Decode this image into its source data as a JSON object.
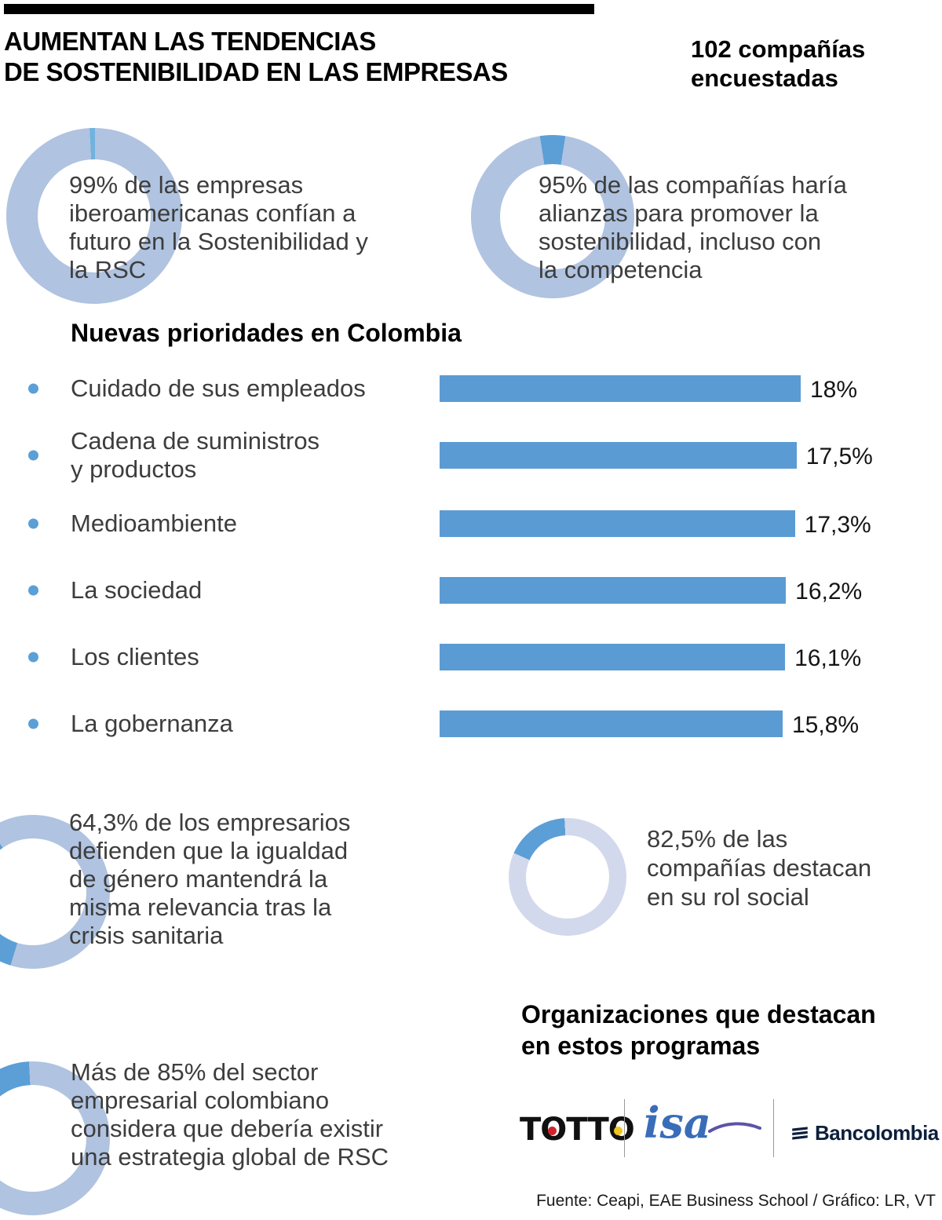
{
  "header": {
    "title": "AUMENTAN LAS TENDENCIAS\nDE SOSTENIBILIDAD EN LAS EMPRESAS",
    "survey_note": "102 compañías\nencuestadas"
  },
  "colors": {
    "accent_blue": "#5b9fd6",
    "ring_periwinkle": "#b0c3e0",
    "ring_light": "#d2d9ec",
    "bar_blue": "#5b9bd3",
    "body_text": "#3d3d3d",
    "totto_red": "#d2232a",
    "totto_yellow": "#f0c41e",
    "isa_blue": "#3a6db8",
    "bancolombia_navy": "#0d1f3c"
  },
  "organizations": {
    "heading": "Organizaciones que destacan\nen estos programas",
    "logos": [
      {
        "name": "Totto",
        "text": "TOTTO"
      },
      {
        "name": "ISA",
        "text": "isa"
      },
      {
        "name": "Bancolombia",
        "text": "Bancolombia"
      }
    ]
  },
  "footer": {
    "source": "Fuente: Ceapi, EAE Business School / Gráfico: LR, VT"
  },
  "chart_data": [
    {
      "type": "pie",
      "subtype": "donut",
      "value_pct": 99,
      "label": "99% de las empresas\niberoamericanas confían a\nfuturo en la Sostenibilidad y\nla RSC",
      "ring_color": "#b0c3e0",
      "accent_color": "#6fb3de",
      "accent_start_deg": 357
    },
    {
      "type": "pie",
      "subtype": "donut",
      "value_pct": 95,
      "label": "95% de las compañías haría\nalianzas para promover la\nsostenibilidad, incluso con\nla competencia",
      "ring_color": "#b0c3e0",
      "accent_color": "#5b9fd6",
      "accent_start_deg": 351
    },
    {
      "type": "bar",
      "orientation": "horizontal",
      "title": "Nuevas prioridades en Colombia",
      "categories": [
        "Cuidado de sus empleados",
        "Cadena de suministros\ny productos",
        "Medioambiente",
        "La sociedad",
        "Los clientes",
        "La gobernanza"
      ],
      "values": [
        18,
        17.5,
        17.3,
        16.2,
        16.1,
        15.8
      ],
      "value_labels": [
        "18%",
        "17,5%",
        "17,3%",
        "16,2%",
        "16,1%",
        "15,8%"
      ],
      "xlim": [
        0,
        18
      ],
      "grid": false,
      "legend": false,
      "bar_color": "#5b9bd3"
    },
    {
      "type": "pie",
      "subtype": "donut",
      "value_pct": 64.3,
      "label": "64,3% de los empresarios\ndefienden que la igualdad\nde género mantendrá la\nmisma relevancia tras la\ncrisis sanitaria",
      "ring_color": "#b0c3e0",
      "accent_color": "#5b9fd6",
      "accent_start_deg": 197
    },
    {
      "type": "pie",
      "subtype": "donut",
      "value_pct": 82.5,
      "label": "82,5% de las\ncompañías destacan\nen su rol social",
      "ring_color": "#d2d9ec",
      "accent_color": "#5b9fd6",
      "accent_start_deg": 294
    },
    {
      "type": "pie",
      "subtype": "donut",
      "value_pct": 85,
      "label": "Más de 85% del sector\nempresarial colombiano\nconsidera que debería existir\nuna estrategia global de RSC",
      "ring_color": "#b0c3e0",
      "accent_color": "#5b9fd6",
      "accent_start_deg": 303
    }
  ]
}
